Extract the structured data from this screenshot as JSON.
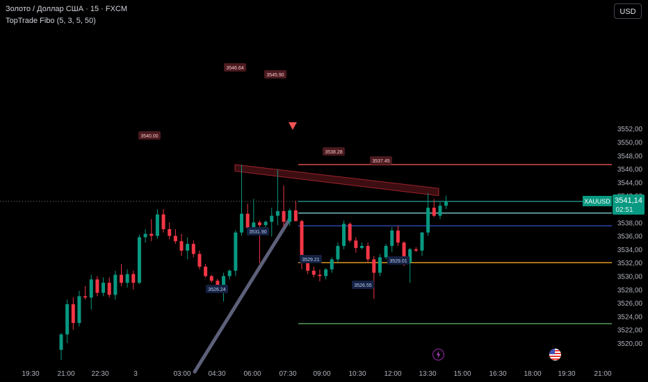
{
  "header": {
    "symbol_title": "Золото / Доллар США · 15 · FXCM",
    "indicator_title": "TopTrade Fibo (5, 3, 5, 50)"
  },
  "currency_button": {
    "label": "USD"
  },
  "price_axis": {
    "labels": [
      "3520,00",
      "3522,00",
      "3524,00",
      "3526,00",
      "3528,00",
      "3530,00",
      "3532,00",
      "3534,00",
      "3536,00",
      "3538,00",
      "3540,00",
      "3542,00",
      "3544,00",
      "3546,00",
      "3548,00",
      "3550,00",
      "3552,00"
    ],
    "current_price_label": "3541,14",
    "countdown_label": "02:51",
    "symbol_tag": "XAUUSD"
  },
  "time_axis": {
    "labels": [
      "19:30",
      "21:00",
      "22:30",
      "3",
      "03:00",
      "04:30",
      "06:00",
      "07:30",
      "09:00",
      "10:30",
      "12:00",
      "13:30",
      "15:00",
      "16:30",
      "18:00",
      "19:30",
      "21:00"
    ]
  },
  "annotations": {
    "high_labels": [
      "3540.00",
      "3546.64",
      "3545.90",
      "3538.28",
      "3537.45"
    ],
    "low_labels": [
      "3526.24",
      "3531.90",
      "3529.21",
      "3526.55",
      "3529.01"
    ]
  },
  "chart_data": {
    "type": "candlestick",
    "symbol": "XAUUSD",
    "candles": [
      [
        3519.0,
        3521.5,
        3517.5,
        3521.3
      ],
      [
        3521.3,
        3526.5,
        3520.0,
        3525.8
      ],
      [
        3525.8,
        3526.8,
        3522.0,
        3523.0
      ],
      [
        3523.0,
        3527.8,
        3522.5,
        3527.0
      ],
      [
        3527.0,
        3528.5,
        3526.5,
        3526.8
      ],
      [
        3526.8,
        3530.2,
        3525.0,
        3529.5
      ],
      [
        3529.5,
        3530.0,
        3527.0,
        3527.5
      ],
      [
        3527.5,
        3529.8,
        3527.0,
        3529.0
      ],
      [
        3529.0,
        3529.8,
        3526.8,
        3527.2
      ],
      [
        3527.2,
        3530.8,
        3526.5,
        3530.2
      ],
      [
        3530.2,
        3531.8,
        3528.5,
        3529.0
      ],
      [
        3529.0,
        3531.0,
        3528.3,
        3530.3
      ],
      [
        3530.3,
        3530.8,
        3528.0,
        3529.0
      ],
      [
        3529.0,
        3536.2,
        3528.8,
        3535.8
      ],
      [
        3535.8,
        3537.0,
        3535.0,
        3536.3
      ],
      [
        3536.3,
        3538.5,
        3535.2,
        3536.0
      ],
      [
        3536.0,
        3540.0,
        3535.6,
        3539.2
      ],
      [
        3539.2,
        3540.0,
        3536.5,
        3537.0
      ],
      [
        3537.0,
        3538.0,
        3535.5,
        3536.0
      ],
      [
        3536.0,
        3537.0,
        3534.8,
        3535.2
      ],
      [
        3535.2,
        3536.3,
        3533.0,
        3533.8
      ],
      [
        3533.8,
        3535.8,
        3532.5,
        3534.8
      ],
      [
        3534.8,
        3535.3,
        3532.8,
        3533.3
      ],
      [
        3533.3,
        3533.8,
        3531.0,
        3531.4
      ],
      [
        3531.4,
        3531.8,
        3529.8,
        3530.0
      ],
      [
        3530.0,
        3530.2,
        3529.0,
        3529.3
      ],
      [
        3529.3,
        3529.6,
        3527.6,
        3528.0
      ],
      [
        3528.0,
        3530.5,
        3526.2,
        3530.0
      ],
      [
        3530.0,
        3531.0,
        3529.5,
        3530.8
      ],
      [
        3530.8,
        3536.8,
        3530.0,
        3536.5
      ],
      [
        3536.5,
        3546.6,
        3536.0,
        3539.3
      ],
      [
        3539.3,
        3540.8,
        3536.5,
        3537.2
      ],
      [
        3537.2,
        3541.5,
        3536.2,
        3538.0
      ],
      [
        3538.0,
        3538.3,
        3531.9,
        3537.6
      ],
      [
        3537.6,
        3538.3,
        3536.3,
        3538.1
      ],
      [
        3538.1,
        3540.2,
        3535.9,
        3539.0
      ],
      [
        3539.0,
        3545.9,
        3537.6,
        3539.7
      ],
      [
        3539.7,
        3543.5,
        3537.4,
        3538.1
      ],
      [
        3538.1,
        3540.1,
        3537.5,
        3539.8
      ],
      [
        3539.8,
        3541.2,
        3538.2,
        3538.2
      ],
      [
        3538.2,
        3538.4,
        3531.0,
        3532.0
      ],
      [
        3532.0,
        3532.3,
        3530.3,
        3530.8
      ],
      [
        3530.8,
        3531.4,
        3529.8,
        3530.2
      ],
      [
        3530.2,
        3531.0,
        3529.2,
        3530.0
      ],
      [
        3530.0,
        3531.2,
        3529.5,
        3531.0
      ],
      [
        3531.0,
        3532.8,
        3530.5,
        3532.5
      ],
      [
        3532.5,
        3535.0,
        3532.0,
        3534.5
      ],
      [
        3534.5,
        3538.3,
        3534.0,
        3537.8
      ],
      [
        3537.8,
        3538.0,
        3535.0,
        3535.3
      ],
      [
        3535.3,
        3535.8,
        3533.5,
        3534.2
      ],
      [
        3534.2,
        3535.0,
        3534.0,
        3534.5
      ],
      [
        3534.5,
        3535.0,
        3532.0,
        3532.5
      ],
      [
        3532.5,
        3533.0,
        3526.6,
        3530.5
      ],
      [
        3530.5,
        3533.3,
        3530.0,
        3532.8
      ],
      [
        3532.8,
        3534.8,
        3532.5,
        3534.5
      ],
      [
        3534.5,
        3537.3,
        3533.6,
        3536.8
      ],
      [
        3536.8,
        3537.5,
        3534.5,
        3535.0
      ],
      [
        3535.0,
        3535.2,
        3531.5,
        3532.0
      ],
      [
        3532.0,
        3534.2,
        3529.0,
        3534.0
      ],
      [
        3534.0,
        3534.3,
        3533.6,
        3533.8
      ],
      [
        3533.8,
        3536.6,
        3533.0,
        3536.5
      ],
      [
        3536.5,
        3542.4,
        3536.0,
        3540.2
      ],
      [
        3540.2,
        3541.5,
        3538.8,
        3539.0
      ],
      [
        3539.0,
        3541.0,
        3538.5,
        3540.5
      ],
      [
        3540.5,
        3542.0,
        3540.0,
        3541.14
      ]
    ],
    "horizontal_levels": [
      {
        "price": 3546.64,
        "color": "#f05252"
      },
      {
        "price": 3541.14,
        "color": "#26a69a"
      },
      {
        "price": 3539.4,
        "color": "#7ecfd0"
      },
      {
        "price": 3537.5,
        "color": "#3355cc"
      },
      {
        "price": 3532.0,
        "color": "#f5a623"
      },
      {
        "price": 3522.9,
        "color": "#66bb6a"
      }
    ],
    "trend_channel": {
      "from": [
        3546.64,
        3545.65
      ],
      "to": [
        3543.3,
        3542.4
      ]
    },
    "trend_line": {
      "from_price": 3538.4,
      "to_price": 3518.0
    },
    "current_price": 3541.14,
    "colors": {
      "up": "#089981",
      "down": "#f23645",
      "price_tag": "#089981"
    }
  }
}
